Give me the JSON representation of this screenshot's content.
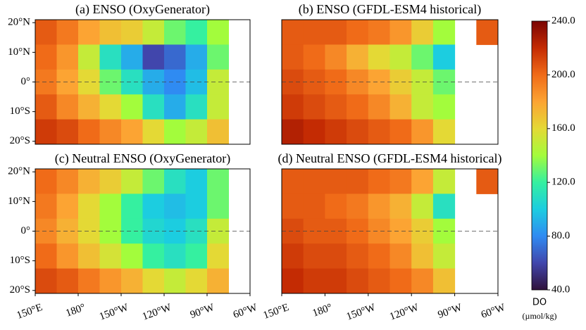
{
  "chart_data": [
    {
      "type": "heatmap",
      "title": "(a) ENSO (OxyGenerator)",
      "x": [
        157.5,
        172.5,
        187.5,
        202.5,
        217.5,
        232.5,
        247.5,
        262.5,
        277.5,
        292.5
      ],
      "y": [
        16.8,
        8.4,
        0,
        -8.4,
        -16.8
      ],
      "values": [
        [
          205,
          195,
          180,
          170,
          165,
          150,
          130,
          120,
          140,
          null
        ],
        [
          200,
          185,
          150,
          110,
          90,
          60,
          70,
          90,
          130,
          null
        ],
        [
          195,
          180,
          160,
          130,
          110,
          90,
          80,
          95,
          150,
          null
        ],
        [
          205,
          190,
          175,
          160,
          140,
          110,
          90,
          110,
          150,
          null
        ],
        [
          215,
          210,
          200,
          190,
          180,
          160,
          140,
          150,
          170,
          null
        ]
      ],
      "xlim": [
        150,
        300
      ],
      "ylim": [
        -21,
        21
      ],
      "yticks": [
        {
          "value": 20,
          "label": "20°N"
        },
        {
          "value": 10,
          "label": "10°N"
        },
        {
          "value": 0,
          "label": "0°"
        },
        {
          "value": -10,
          "label": "10°S"
        },
        {
          "value": -20,
          "label": "20°S"
        }
      ]
    },
    {
      "type": "heatmap",
      "title": "(b) ENSO (GFDL-ESM4 historical)",
      "x": [
        157.5,
        172.5,
        187.5,
        202.5,
        217.5,
        232.5,
        247.5,
        262.5,
        277.5,
        292.5
      ],
      "y": [
        16.8,
        8.4,
        0,
        -8.4,
        -16.8
      ],
      "values": [
        [
          205,
          205,
          205,
          200,
          195,
          185,
          165,
          140,
          null,
          205
        ],
        [
          205,
          200,
          190,
          175,
          160,
          150,
          130,
          100,
          null,
          null
        ],
        [
          210,
          205,
          200,
          190,
          180,
          165,
          150,
          130,
          null,
          null
        ],
        [
          215,
          210,
          205,
          200,
          190,
          175,
          150,
          140,
          null,
          null
        ],
        [
          225,
          220,
          215,
          210,
          205,
          200,
          185,
          160,
          null,
          null
        ]
      ],
      "xlim": [
        150,
        300
      ],
      "ylim": [
        -21,
        21
      ]
    },
    {
      "type": "heatmap",
      "title": "(c) Neutral ENSO (OxyGenerator)",
      "x": [
        157.5,
        172.5,
        187.5,
        202.5,
        217.5,
        232.5,
        247.5,
        262.5,
        277.5,
        292.5
      ],
      "y": [
        16.8,
        8.4,
        0,
        -8.4,
        -16.8
      ],
      "values": [
        [
          200,
          190,
          175,
          165,
          150,
          130,
          110,
          100,
          130,
          null
        ],
        [
          195,
          180,
          160,
          140,
          120,
          100,
          95,
          100,
          130,
          null
        ],
        [
          190,
          175,
          160,
          140,
          120,
          105,
          100,
          110,
          150,
          null
        ],
        [
          200,
          185,
          170,
          155,
          140,
          120,
          110,
          120,
          160,
          null
        ],
        [
          210,
          205,
          195,
          185,
          175,
          160,
          150,
          160,
          175,
          null
        ]
      ],
      "xlim": [
        150,
        300
      ],
      "ylim": [
        -21,
        21
      ],
      "yticks": [
        {
          "value": 20,
          "label": "20°N"
        },
        {
          "value": 10,
          "label": "10°N"
        },
        {
          "value": 0,
          "label": "0°"
        },
        {
          "value": -10,
          "label": "10°S"
        },
        {
          "value": -20,
          "label": "20°S"
        }
      ],
      "xticks": [
        {
          "value": 150,
          "label": "150°E"
        },
        {
          "value": 180,
          "label": "180°"
        },
        {
          "value": 210,
          "label": "150°W"
        },
        {
          "value": 240,
          "label": "120°W"
        },
        {
          "value": 270,
          "label": "90°W"
        },
        {
          "value": 300,
          "label": "60°W"
        }
      ]
    },
    {
      "type": "heatmap",
      "title": "(d) Neutral ENSO (GFDL-ESM4 historical)",
      "x": [
        157.5,
        172.5,
        187.5,
        202.5,
        217.5,
        232.5,
        247.5,
        262.5,
        277.5,
        292.5
      ],
      "y": [
        16.8,
        8.4,
        0,
        -8.4,
        -16.8
      ],
      "values": [
        [
          205,
          205,
          205,
          205,
          200,
          195,
          180,
          150,
          null,
          205
        ],
        [
          205,
          205,
          200,
          195,
          185,
          175,
          150,
          110,
          null,
          null
        ],
        [
          210,
          205,
          205,
          200,
          190,
          180,
          165,
          140,
          null,
          null
        ],
        [
          215,
          210,
          210,
          205,
          200,
          190,
          170,
          150,
          null,
          null
        ],
        [
          220,
          215,
          215,
          210,
          205,
          200,
          190,
          170,
          null,
          null
        ]
      ],
      "xlim": [
        150,
        300
      ],
      "ylim": [
        -21,
        21
      ],
      "xticks": [
        {
          "value": 150,
          "label": "150°E"
        },
        {
          "value": 180,
          "label": "180°"
        },
        {
          "value": 210,
          "label": "150°W"
        },
        {
          "value": 240,
          "label": "120°W"
        },
        {
          "value": 270,
          "label": "90°W"
        },
        {
          "value": 300,
          "label": "60°W"
        }
      ]
    }
  ],
  "colorbar": {
    "label": "DO",
    "unit": "(µmol/kg)",
    "clim": [
      40,
      240
    ],
    "ticks": [
      {
        "value": 40,
        "label": "40.0"
      },
      {
        "value": 80,
        "label": "80.0"
      },
      {
        "value": 120,
        "label": "120.0"
      },
      {
        "value": 160,
        "label": "160.0"
      },
      {
        "value": 200,
        "label": "200.0"
      },
      {
        "value": 240,
        "label": "240.0"
      }
    ],
    "colormap": [
      "#30123b",
      "#4146ac",
      "#2f8bf2",
      "#1ccde0",
      "#35f0a0",
      "#a3fc3c",
      "#e4d935",
      "#fca433",
      "#f06b18",
      "#c42b03",
      "#7a0403"
    ]
  }
}
